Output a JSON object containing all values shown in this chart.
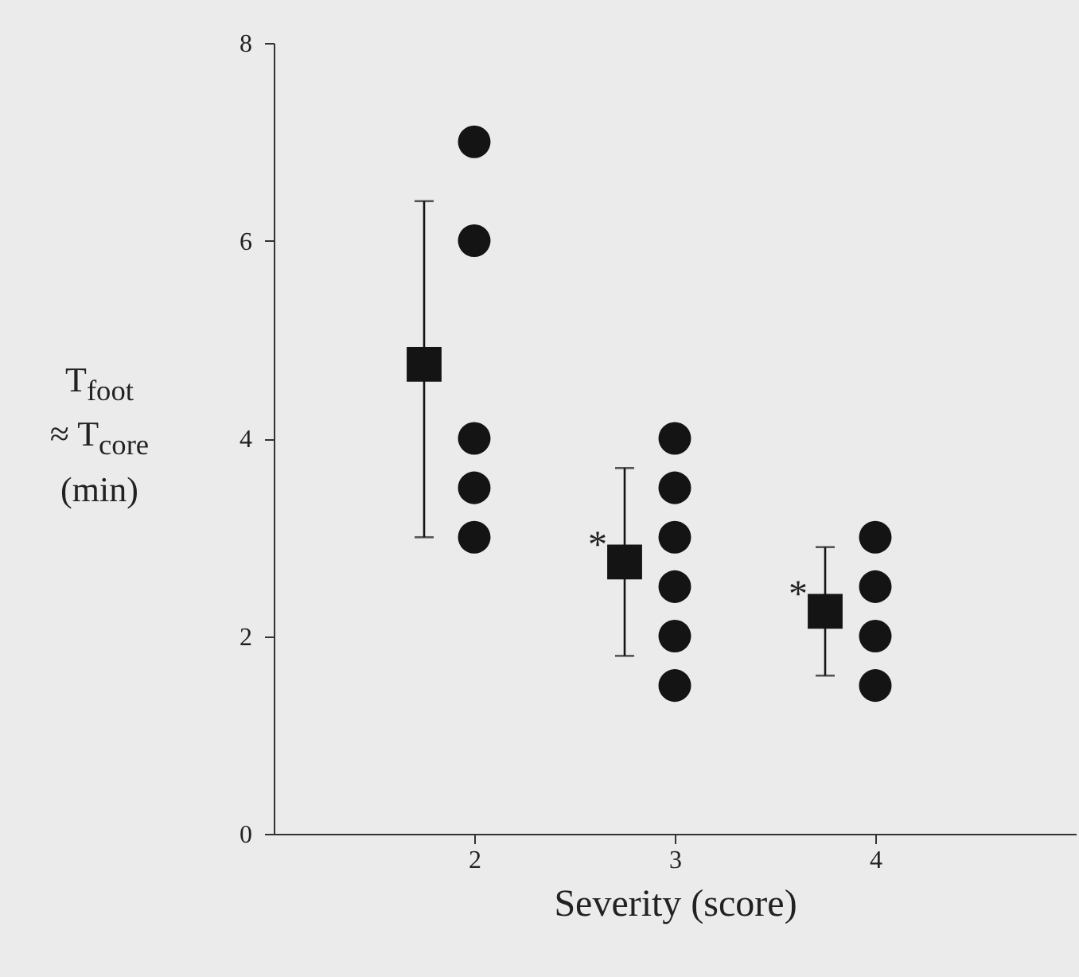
{
  "chart_data": {
    "type": "scatter",
    "xlabel": "Severity (score)",
    "ylabel": "T$_{foot}$ ≈ T$_{core}$ (min)",
    "xlim": [
      1,
      5
    ],
    "xticks": [
      2,
      3,
      4
    ],
    "ylim": [
      0,
      8
    ],
    "yticks": [
      0,
      2,
      4,
      6,
      8
    ],
    "grid": false,
    "series": [
      {
        "color": "#141414",
        "marker": "circle",
        "x": [
          2,
          2,
          2,
          2,
          2,
          3,
          3,
          3,
          3,
          3,
          3,
          4,
          4,
          4,
          4
        ],
        "values": [
          7,
          6,
          4,
          3.5,
          3,
          4,
          3.5,
          3,
          2.5,
          2,
          1.5,
          3,
          2.5,
          2,
          1.5
        ]
      },
      {
        "color": "#141414",
        "marker": "square",
        "x": [
          1.75,
          2.75,
          3.75
        ],
        "values": [
          4.75,
          2.75,
          2.25
        ],
        "errors": [
          [
            3,
            6.4
          ],
          [
            1.8,
            3.7
          ],
          [
            1.6,
            2.9
          ]
        ]
      }
    ],
    "annotations": [
      {
        "text": "*",
        "x": 2.75,
        "y": 2.75
      },
      {
        "text": "*",
        "x": 3.75,
        "y": 2.25
      }
    ]
  }
}
